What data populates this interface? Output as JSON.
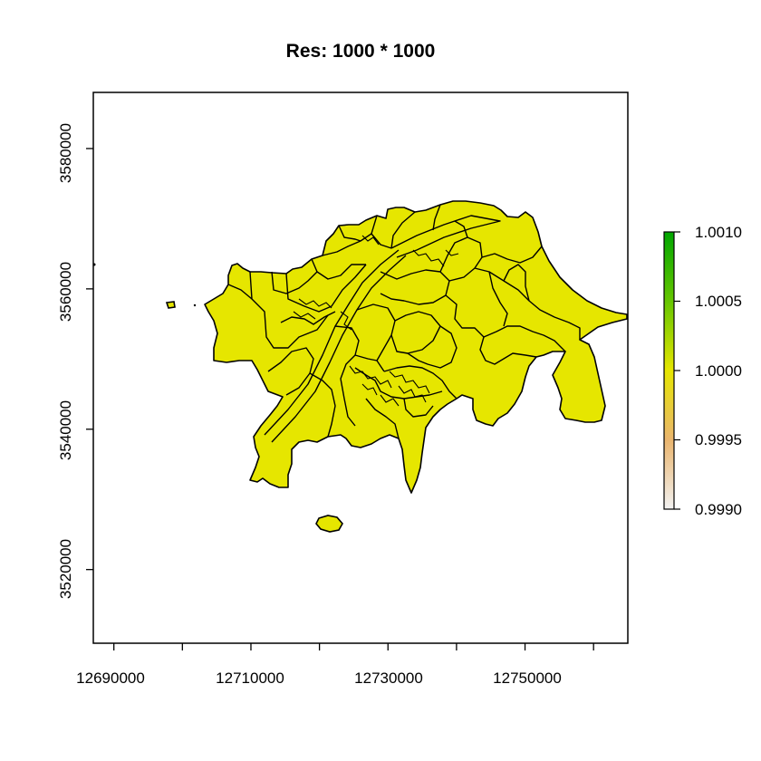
{
  "chart_data": {
    "type": "map",
    "title": "Res:  1000 * 1000",
    "xlim": [
      12687000,
      12765000
    ],
    "ylim": [
      3509500,
      3588000
    ],
    "x_ticks": [
      12690000,
      12700000,
      12710000,
      12720000,
      12730000,
      12740000,
      12750000,
      12760000
    ],
    "x_tick_labels": [
      "12690000",
      "12710000",
      "12730000",
      "12750000"
    ],
    "x_labeled_ticks": [
      12690000,
      12710000,
      12730000,
      12750000
    ],
    "y_ticks": [
      3520000,
      3540000,
      3560000,
      3580000
    ],
    "y_tick_labels": [
      "3520000",
      "3540000",
      "3560000",
      "3580000"
    ],
    "fill_color": "#E6E600",
    "border_color": "#000000",
    "legend": {
      "placement": "right",
      "min": 0.999,
      "max": 1.001,
      "labels": [
        "1.0010",
        "1.0005",
        "1.0000",
        "0.9995",
        "0.9990"
      ],
      "values": [
        1.001,
        1.0005,
        1.0,
        0.9995,
        0.999
      ],
      "colors": [
        "#F2F2F2",
        "#EAB56E",
        "#E6E600",
        "#66C600",
        "#00A600"
      ]
    }
  }
}
